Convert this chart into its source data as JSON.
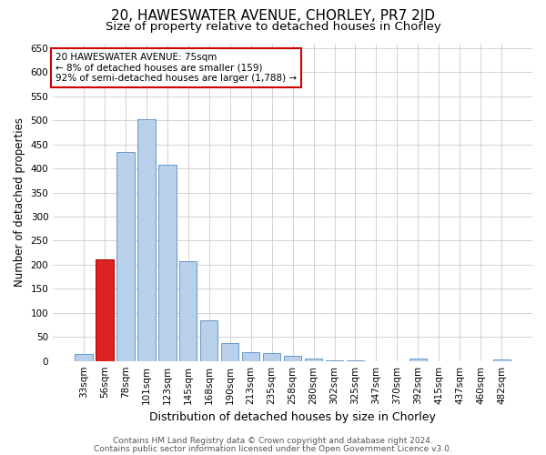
{
  "title_line1": "20, HAWESWATER AVENUE, CHORLEY, PR7 2JD",
  "title_line2": "Size of property relative to detached houses in Chorley",
  "xlabel": "Distribution of detached houses by size in Chorley",
  "ylabel": "Number of detached properties",
  "annotation_line1": "20 HAWESWATER AVENUE: 75sqm",
  "annotation_line2": "← 8% of detached houses are smaller (159)",
  "annotation_line3": "92% of semi-detached houses are larger (1,788) →",
  "footer_line1": "Contains HM Land Registry data © Crown copyright and database right 2024.",
  "footer_line2": "Contains public sector information licensed under the Open Government Licence v3.0.",
  "categories": [
    "33sqm",
    "56sqm",
    "78sqm",
    "101sqm",
    "123sqm",
    "145sqm",
    "168sqm",
    "190sqm",
    "213sqm",
    "235sqm",
    "258sqm",
    "280sqm",
    "302sqm",
    "325sqm",
    "347sqm",
    "370sqm",
    "392sqm",
    "415sqm",
    "437sqm",
    "460sqm",
    "482sqm"
  ],
  "values": [
    15,
    212,
    435,
    503,
    408,
    208,
    85,
    38,
    18,
    17,
    11,
    5,
    2,
    2,
    0,
    0,
    5,
    0,
    0,
    0,
    4
  ],
  "bar_color": "#b8d0ea",
  "bar_edge_color": "#6699cc",
  "highlight_bar_index": 1,
  "highlight_bar_color": "#dd2222",
  "highlight_bar_edge_color": "#aa0000",
  "annotation_box_color": "#ffffff",
  "annotation_box_edge_color": "#cc0000",
  "ylim": [
    0,
    660
  ],
  "yticks": [
    0,
    50,
    100,
    150,
    200,
    250,
    300,
    350,
    400,
    450,
    500,
    550,
    600,
    650
  ],
  "grid_color": "#cccccc",
  "background_color": "#ffffff",
  "title1_fontsize": 11,
  "title2_fontsize": 9.5,
  "xlabel_fontsize": 9,
  "ylabel_fontsize": 8.5,
  "tick_fontsize": 7.5,
  "annotation_fontsize": 7.5,
  "footer_fontsize": 6.5
}
